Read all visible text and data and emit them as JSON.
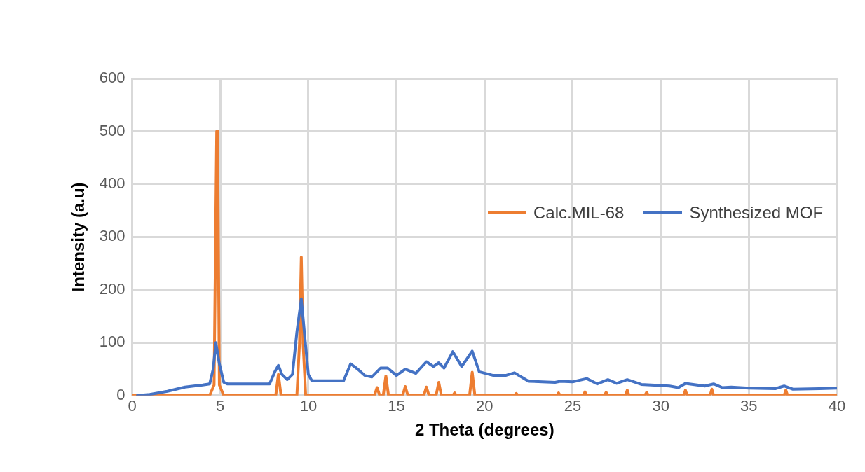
{
  "chart_data": {
    "type": "line",
    "xlabel": "2 Theta (degrees)",
    "ylabel": "Intensity (a.u)",
    "xlim": [
      0,
      40
    ],
    "xticks": [
      0,
      5,
      10,
      15,
      20,
      25,
      30,
      35,
      40
    ],
    "ylim": [
      0,
      600
    ],
    "yticks": [
      0,
      100,
      200,
      300,
      400,
      500,
      600
    ],
    "grid": true,
    "legend": "right",
    "marker": "none",
    "line_style": "solid",
    "series": [
      {
        "name": "Calc.MIL-68",
        "color": "#ed7d31",
        "x": [
          0,
          4.4,
          4.65,
          4.8,
          4.85,
          4.95,
          5.2,
          8.15,
          8.3,
          8.45,
          9.35,
          9.5,
          9.6,
          9.7,
          9.85,
          13.75,
          13.9,
          14.05,
          14.25,
          14.4,
          14.55,
          15.35,
          15.5,
          15.65,
          16.55,
          16.7,
          16.85,
          17.25,
          17.4,
          17.55,
          18.2,
          18.3,
          18.4,
          19.15,
          19.3,
          19.45,
          21.7,
          21.8,
          21.9,
          24.1,
          24.2,
          24.3,
          25.6,
          25.7,
          25.8,
          26.8,
          26.9,
          27.0,
          28.0,
          28.1,
          28.2,
          29.1,
          29.2,
          29.3,
          31.3,
          31.4,
          31.5,
          32.8,
          32.9,
          33.0,
          37.0,
          37.1,
          37.2,
          40
        ],
        "values": [
          0,
          0,
          20,
          500,
          500,
          20,
          0,
          0,
          40,
          0,
          0,
          100,
          262,
          100,
          0,
          0,
          15,
          0,
          0,
          37,
          0,
          0,
          17,
          0,
          0,
          16,
          0,
          0,
          25,
          0,
          0,
          5,
          0,
          0,
          44,
          0,
          0,
          4,
          0,
          0,
          5,
          0,
          0,
          7,
          0,
          0,
          6,
          0,
          0,
          10,
          0,
          0,
          6,
          0,
          0,
          10,
          0,
          0,
          12,
          0,
          0,
          10,
          0,
          0
        ]
      },
      {
        "name": "Synthesized MOF",
        "color": "#4472c4",
        "x": [
          0.3,
          1,
          2,
          3,
          4,
          4.4,
          4.6,
          4.75,
          4.95,
          5.2,
          5.4,
          7.8,
          8.1,
          8.3,
          8.5,
          8.8,
          9.1,
          9.35,
          9.6,
          9.8,
          10.0,
          10.2,
          12.0,
          12.4,
          12.8,
          13.2,
          13.6,
          14.1,
          14.5,
          15.0,
          15.5,
          16.1,
          16.7,
          17.1,
          17.4,
          17.7,
          18.2,
          18.7,
          19.3,
          19.7,
          20.5,
          21.2,
          21.7,
          22.5,
          24.0,
          24.3,
          25.0,
          25.8,
          26.4,
          27.0,
          27.5,
          28.1,
          28.9,
          30.0,
          30.5,
          31.0,
          31.4,
          32.5,
          33.0,
          33.5,
          34.0,
          35.0,
          36.5,
          37.0,
          37.5,
          39.0,
          40
        ],
        "values": [
          0,
          2,
          8,
          16,
          20,
          22,
          50,
          100,
          60,
          25,
          22,
          22,
          45,
          57,
          40,
          30,
          40,
          120,
          183,
          110,
          40,
          28,
          28,
          60,
          50,
          38,
          35,
          52,
          52,
          38,
          50,
          42,
          64,
          55,
          62,
          52,
          83,
          55,
          84,
          45,
          38,
          38,
          43,
          27,
          25,
          27,
          26,
          32,
          22,
          30,
          23,
          30,
          21,
          19,
          18,
          15,
          23,
          18,
          22,
          15,
          16,
          14,
          13,
          18,
          12,
          13,
          14
        ]
      }
    ]
  }
}
